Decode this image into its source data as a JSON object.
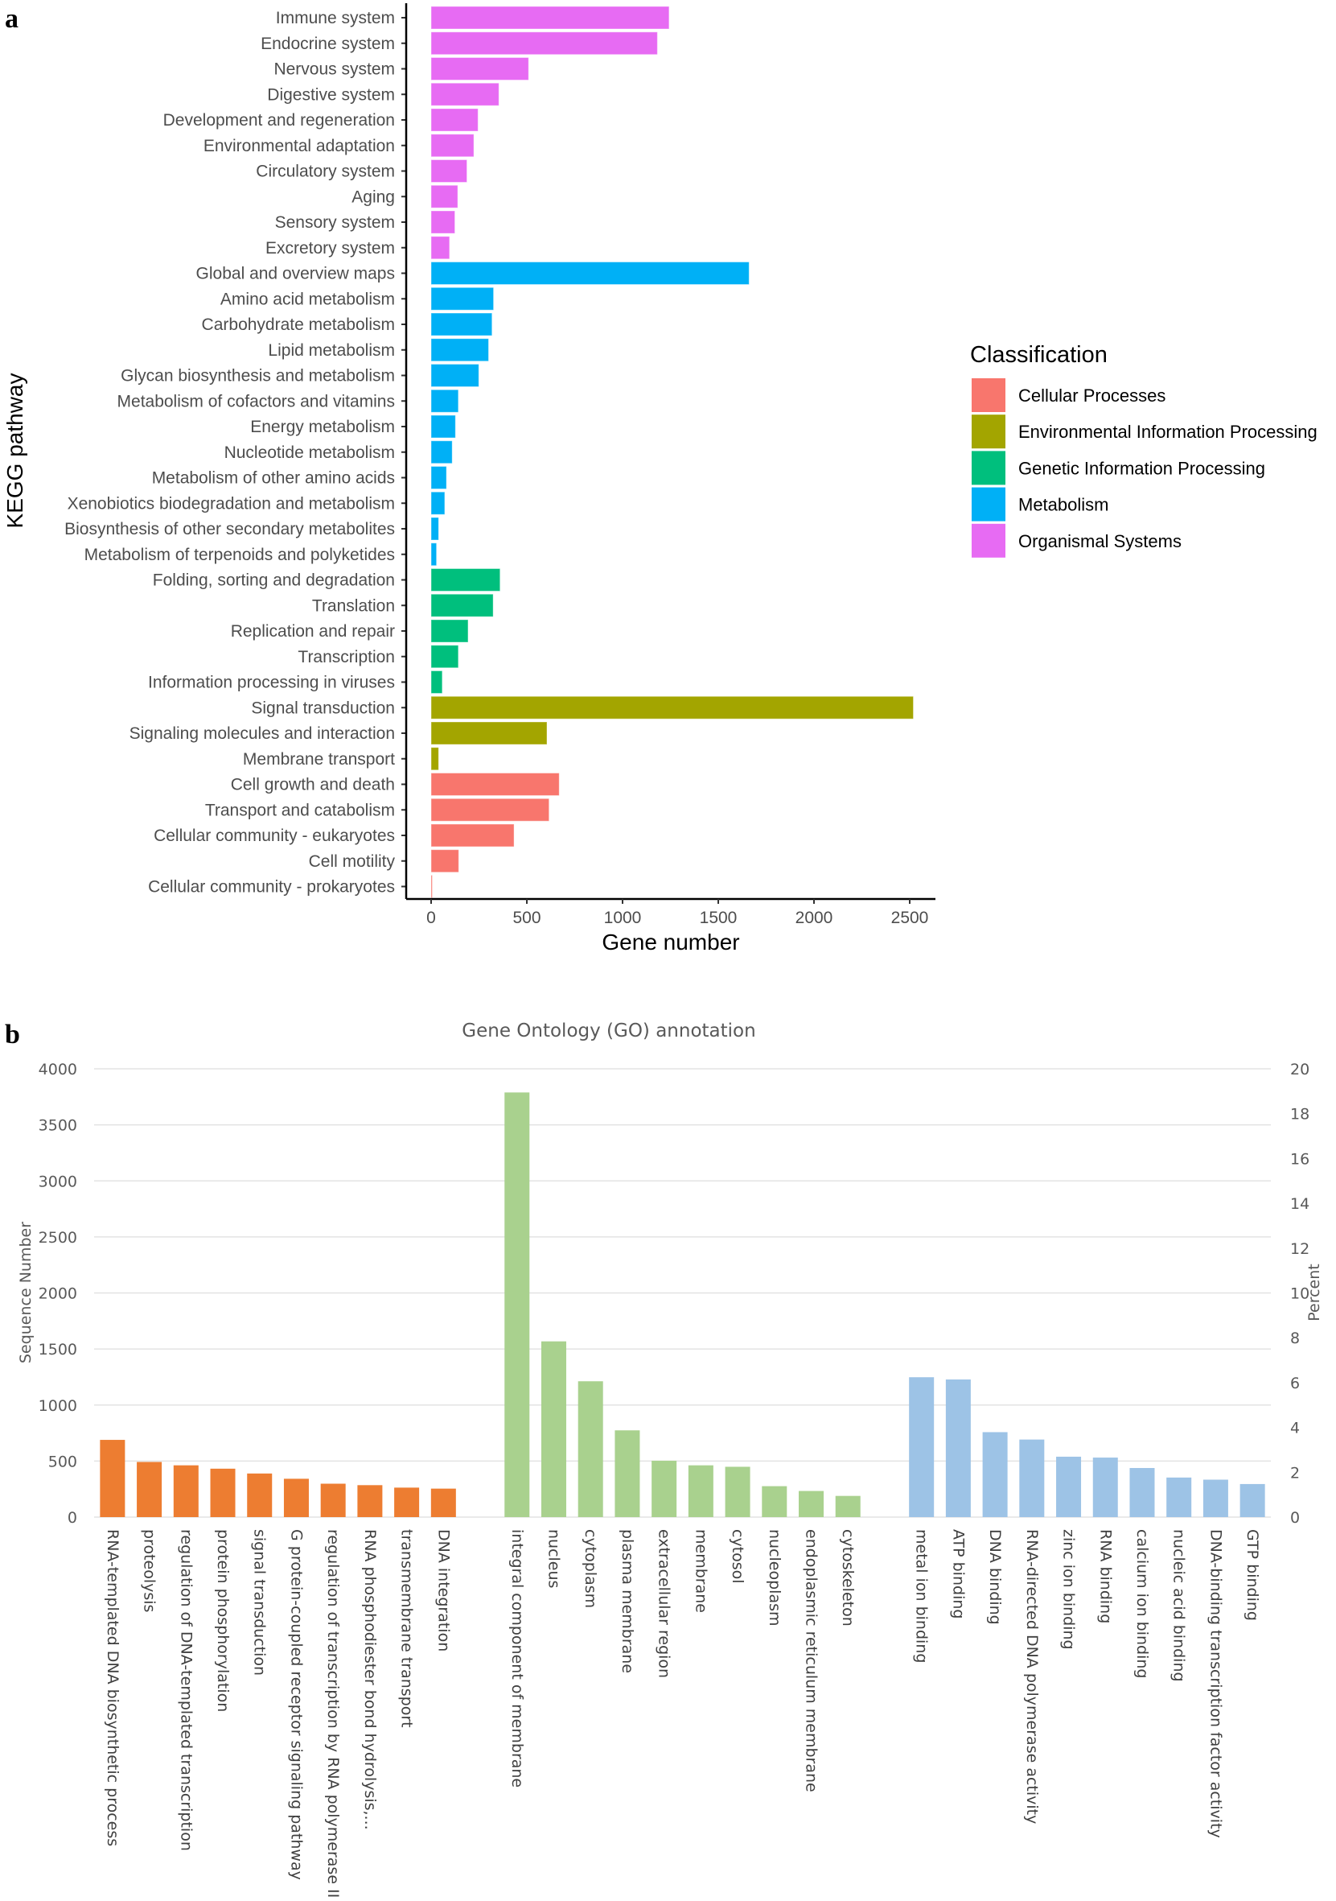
{
  "chart_data": [
    {
      "panel_label": "a",
      "type": "bar",
      "orientation": "horizontal",
      "xlabel": "Gene number",
      "ylabel": "KEGG pathway",
      "xlim": [
        0,
        2650
      ],
      "xticks": [
        "0",
        "500",
        "1000",
        "1500",
        "2000",
        "2500"
      ],
      "grid": false,
      "legend": {
        "title": "Classification",
        "placement": "right",
        "entries": [
          {
            "name": "Cellular Processes",
            "color": "#F8766D"
          },
          {
            "name": "Environmental Information Processing",
            "color": "#A3A500"
          },
          {
            "name": "Genetic Information Processing",
            "color": "#00BF7D"
          },
          {
            "name": "Metabolism",
            "color": "#00B0F6"
          },
          {
            "name": "Organismal Systems",
            "color": "#E76BF3"
          }
        ]
      },
      "bars": [
        {
          "label": "Immune system",
          "value": 1243,
          "class": 4
        },
        {
          "label": "Endocrine system",
          "value": 1182,
          "class": 4
        },
        {
          "label": "Nervous system",
          "value": 509,
          "class": 4
        },
        {
          "label": "Digestive system",
          "value": 354,
          "class": 4
        },
        {
          "label": "Development and regeneration",
          "value": 245,
          "class": 4
        },
        {
          "label": "Environmental adaptation",
          "value": 223,
          "class": 4
        },
        {
          "label": "Circulatory system",
          "value": 187,
          "class": 4
        },
        {
          "label": "Aging",
          "value": 139,
          "class": 4
        },
        {
          "label": "Sensory system",
          "value": 124,
          "class": 4
        },
        {
          "label": "Excretory system",
          "value": 96,
          "class": 4
        },
        {
          "label": "Global and overview maps",
          "value": 1661,
          "class": 3
        },
        {
          "label": "Amino acid metabolism",
          "value": 326,
          "class": 3
        },
        {
          "label": "Carbohydrate metabolism",
          "value": 318,
          "class": 3
        },
        {
          "label": "Lipid metabolism",
          "value": 300,
          "class": 3
        },
        {
          "label": "Glycan biosynthesis and metabolism",
          "value": 249,
          "class": 3
        },
        {
          "label": "Metabolism of cofactors and vitamins",
          "value": 142,
          "class": 3
        },
        {
          "label": "Energy metabolism",
          "value": 127,
          "class": 3
        },
        {
          "label": "Nucleotide metabolism",
          "value": 110,
          "class": 3
        },
        {
          "label": "Metabolism of other amino acids",
          "value": 80,
          "class": 3
        },
        {
          "label": "Xenobiotics biodegradation and metabolism",
          "value": 71,
          "class": 3
        },
        {
          "label": "Biosynthesis of other secondary metabolites",
          "value": 39,
          "class": 3
        },
        {
          "label": "Metabolism of terpenoids and polyketides",
          "value": 28,
          "class": 3
        },
        {
          "label": "Folding, sorting and degradation",
          "value": 360,
          "class": 2
        },
        {
          "label": "Translation",
          "value": 324,
          "class": 2
        },
        {
          "label": "Replication and repair",
          "value": 193,
          "class": 2
        },
        {
          "label": "Transcription",
          "value": 142,
          "class": 2
        },
        {
          "label": "Information processing in viruses",
          "value": 58,
          "class": 2
        },
        {
          "label": "Signal transduction",
          "value": 2519,
          "class": 1
        },
        {
          "label": "Signaling molecules and interaction",
          "value": 605,
          "class": 1
        },
        {
          "label": "Membrane transport",
          "value": 39,
          "class": 1
        },
        {
          "label": "Cell growth and death",
          "value": 669,
          "class": 0
        },
        {
          "label": "Transport and catabolism",
          "value": 616,
          "class": 0
        },
        {
          "label": "Cellular community - eukaryotes",
          "value": 433,
          "class": 0
        },
        {
          "label": "Cell motility",
          "value": 144,
          "class": 0
        },
        {
          "label": "Cellular community - prokaryotes",
          "value": 6,
          "class": 0
        }
      ]
    },
    {
      "panel_label": "b",
      "type": "bar",
      "title": "Gene Ontology (GO) annotation",
      "ylabel": "Sequence Number",
      "y2label": "Percent",
      "ylim": [
        0,
        4000
      ],
      "yticks": [
        "0",
        "500",
        "1000",
        "1500",
        "2000",
        "2500",
        "3000",
        "3500",
        "4000"
      ],
      "y2lim": [
        0,
        20
      ],
      "y2ticks": [
        "0",
        "2",
        "4",
        "6",
        "8",
        "10",
        "12",
        "14",
        "16",
        "18",
        "20"
      ],
      "grid": true,
      "groups": [
        {
          "color": "#ED7D31",
          "categories": [
            "RNA-templated DNA biosynthetic process",
            "proteolysis",
            "regulation of DNA-templated transcription",
            "protein phosphorylation",
            "signal transduction",
            "G protein-coupled receptor signaling pathway",
            "regulation of transcription by RNA polymerase II",
            "RNA phosphodiester bond hydrolysis,...",
            "transmembrane transport",
            "DNA integration"
          ],
          "values": [
            689,
            492,
            462,
            432,
            389,
            342,
            298,
            285,
            263,
            254
          ]
        },
        {
          "color": "#A9D18E",
          "categories": [
            "integral component of membrane",
            "nucleus",
            "cytoplasm",
            "plasma membrane",
            "extracellular region",
            "membrane",
            "cytosol",
            "nucleoplasm",
            "endoplasmic reticulum membrane",
            "cytoskeleton"
          ],
          "values": [
            3789,
            1568,
            1212,
            774,
            503,
            462,
            449,
            276,
            233,
            189
          ]
        },
        {
          "color": "#9DC3E6",
          "categories": [
            "metal ion binding",
            "ATP binding",
            "DNA binding",
            "RNA-directed DNA polymerase activity",
            "zinc ion binding",
            "RNA binding",
            "calcium ion binding",
            "nucleic acid binding",
            "DNA-binding transcription factor activity",
            "GTP binding"
          ],
          "values": [
            1248,
            1228,
            758,
            692,
            539,
            531,
            438,
            353,
            334,
            295
          ]
        }
      ]
    }
  ]
}
